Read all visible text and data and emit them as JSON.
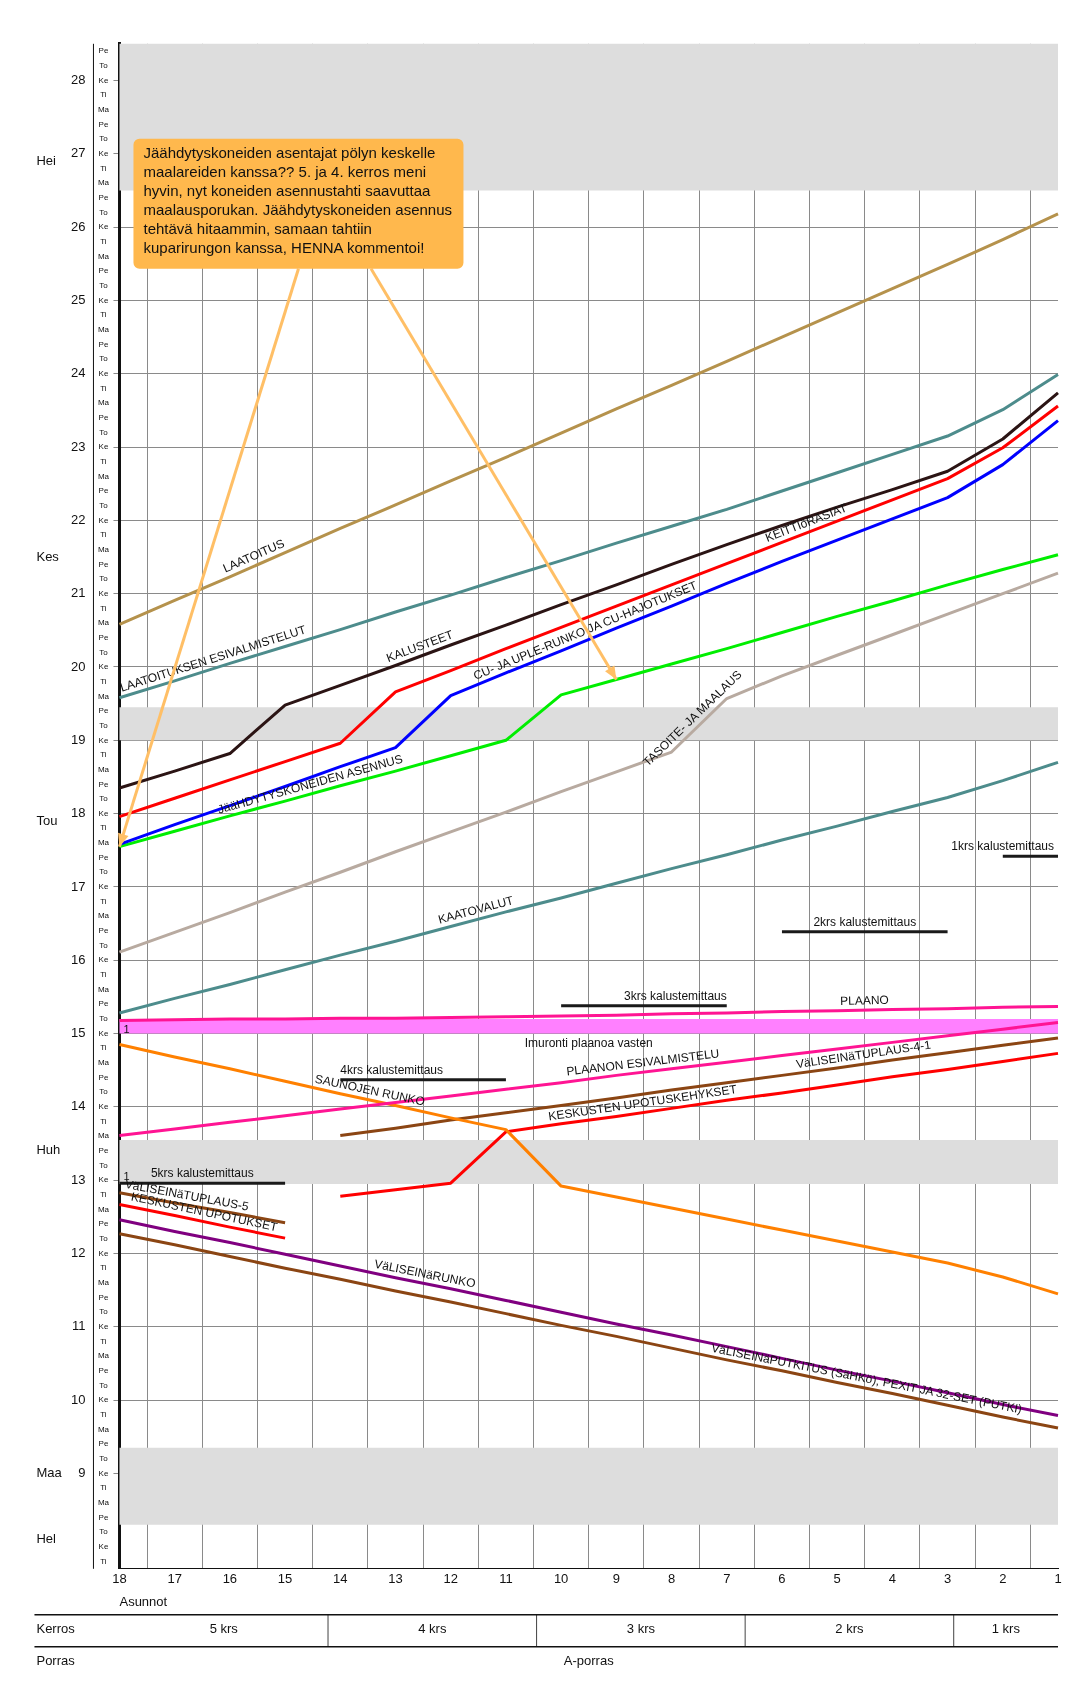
{
  "chart_data": {
    "type": "line",
    "xlabel": "Asunnot",
    "categories": [
      "18",
      "17",
      "16",
      "15",
      "14",
      "13",
      "12",
      "11",
      "10",
      "9",
      "8",
      "7",
      "6",
      "5",
      "4",
      "3",
      "2",
      "1"
    ],
    "ylim": [
      7.7,
      28.5
    ],
    "yticks": [
      9,
      10,
      11,
      12,
      13,
      14,
      15,
      16,
      17,
      18,
      19,
      20,
      21,
      22,
      23,
      24,
      25,
      26,
      27,
      28
    ],
    "grid": true,
    "legend": false,
    "bands": [
      {
        "axis": "y",
        "from": 8.3,
        "to": 9.35,
        "color": "#dddddd"
      },
      {
        "axis": "y",
        "from": 12.95,
        "to": 13.55,
        "color": "#dddddd"
      },
      {
        "axis": "y",
        "from": 19.0,
        "to": 19.45,
        "color": "#dddddd"
      },
      {
        "axis": "y",
        "from": 26.5,
        "to": 28.5,
        "color": "#dddddd"
      },
      {
        "axis": "y",
        "from": 15.0,
        "to": 15.2,
        "color": "#ff80ff",
        "label": "Imuronti plaanoa vasten"
      }
    ],
    "series": [
      {
        "name": "LAATOITUS",
        "color": "#b5924c",
        "values": [
          20.58,
          20.91,
          21.23,
          21.56,
          21.89,
          22.21,
          22.54,
          22.86,
          23.19,
          23.52,
          23.84,
          24.17,
          24.5,
          24.83,
          25.16,
          25.49,
          25.83,
          26.18
        ]
      },
      {
        "name": "LAATOITUKSEN ESIVALMISTELUT",
        "color": "#4d8c8c",
        "values": [
          19.58,
          19.81,
          20.05,
          20.28,
          20.51,
          20.75,
          20.98,
          21.22,
          21.45,
          21.69,
          21.92,
          22.15,
          22.4,
          22.65,
          22.9,
          23.15,
          23.51,
          23.99
        ]
      },
      {
        "name": "KALUSTEET",
        "color": "#2b1414",
        "values": [
          18.35,
          18.58,
          18.82,
          19.48,
          19.75,
          20.02,
          20.3,
          20.57,
          20.85,
          21.12,
          21.4,
          21.67,
          21.93,
          22.18,
          22.42,
          22.67,
          23.11,
          23.74
        ]
      },
      {
        "name": "KEITTIöRASIAT",
        "color": "#ff0000",
        "values": [
          17.96,
          18.21,
          18.46,
          18.71,
          18.96,
          19.66,
          19.95,
          20.25,
          20.54,
          20.83,
          21.12,
          21.41,
          21.7,
          21.99,
          22.28,
          22.57,
          22.99,
          23.56
        ]
      },
      {
        "name": "CU- JA UPLE-RUNKO JA CU-HAJOTUKSET",
        "color": "#0000ff",
        "values": [
          17.58,
          17.85,
          18.11,
          18.37,
          18.64,
          18.9,
          19.61,
          19.92,
          20.22,
          20.53,
          20.83,
          21.14,
          21.44,
          21.73,
          22.02,
          22.31,
          22.76,
          23.36
        ]
      },
      {
        "name": "JääHDYTYSKONEIDEN ASENNUS",
        "color": "#00ee00",
        "values": [
          17.55,
          17.76,
          17.97,
          18.17,
          18.38,
          18.58,
          18.79,
          19.0,
          19.62,
          19.83,
          20.04,
          20.25,
          20.47,
          20.69,
          20.9,
          21.12,
          21.33,
          21.53
        ]
      },
      {
        "name": "TASOITE- JA MAALAUS",
        "color": "#b8aaa0",
        "values": [
          16.11,
          16.38,
          16.65,
          16.93,
          17.2,
          17.48,
          17.75,
          18.02,
          18.3,
          18.57,
          18.84,
          19.57,
          19.88,
          20.16,
          20.44,
          20.72,
          21.0,
          21.28
        ]
      },
      {
        "name": "KAATOVALUT",
        "color": "#4d8c8c",
        "values": [
          15.28,
          15.48,
          15.67,
          15.87,
          16.07,
          16.26,
          16.46,
          16.66,
          16.85,
          17.05,
          17.25,
          17.44,
          17.64,
          17.83,
          18.03,
          18.22,
          18.45,
          18.7
        ]
      },
      {
        "name": "PLAANO",
        "color": "#ff1493",
        "values": [
          15.18,
          15.19,
          15.2,
          15.2,
          15.21,
          15.21,
          15.22,
          15.23,
          15.24,
          15.25,
          15.27,
          15.28,
          15.3,
          15.31,
          15.33,
          15.34,
          15.36,
          15.37
        ]
      },
      {
        "name": "PLAANON ESIVALMISTELU",
        "color": "#ff1493",
        "values": [
          13.61,
          13.7,
          13.79,
          13.88,
          13.97,
          14.06,
          14.15,
          14.24,
          14.33,
          14.43,
          14.52,
          14.61,
          14.7,
          14.79,
          14.88,
          14.97,
          15.06,
          15.15
        ]
      },
      {
        "name": "SAUNOJEN RUNKO",
        "color": "#ff8000",
        "values": [
          14.85,
          14.68,
          14.52,
          14.35,
          14.18,
          14.02,
          13.85,
          13.69,
          12.92,
          12.77,
          12.62,
          12.47,
          12.32,
          12.17,
          12.02,
          11.87,
          11.68,
          11.45
        ]
      },
      {
        "name": "VäLISEINäTUPLAUS-4-1",
        "color": "#8b4513",
        "values": [
          null,
          null,
          null,
          null,
          13.61,
          13.71,
          13.82,
          13.92,
          14.02,
          14.12,
          14.23,
          14.33,
          14.43,
          14.53,
          14.64,
          14.74,
          14.84,
          14.94
        ]
      },
      {
        "name": "KESKUSTEN UPOTUSKEHYKSET",
        "color": "#ff0000",
        "values": [
          null,
          null,
          null,
          null,
          12.78,
          12.87,
          12.96,
          13.66,
          13.77,
          13.87,
          13.98,
          14.09,
          14.19,
          14.3,
          14.41,
          14.51,
          14.62,
          14.73
        ]
      },
      {
        "name": "VäLISEINäTUPLAUS-5",
        "color": "#8b4513",
        "values": [
          12.83,
          12.69,
          12.56,
          12.42,
          null,
          null,
          null,
          null,
          null,
          null,
          null,
          null,
          null,
          null,
          null,
          null,
          null,
          null
        ]
      },
      {
        "name": "KESKUSTEN UPOTUKSET",
        "color": "#ff0000",
        "values": [
          12.67,
          12.52,
          12.36,
          12.21,
          null,
          null,
          null,
          null,
          null,
          null,
          null,
          null,
          null,
          null,
          null,
          null,
          null,
          null
        ]
      },
      {
        "name": "VäLISEINäRUNKO",
        "color": "#800080",
        "values": [
          12.46,
          12.3,
          12.15,
          11.99,
          11.83,
          11.67,
          11.52,
          11.36,
          11.2,
          11.04,
          10.89,
          10.73,
          10.57,
          10.41,
          10.26,
          10.1,
          9.94,
          9.79
        ]
      },
      {
        "name": "VäLISEINäPUTKITUS (SäHKö), PEXIT JA 32-SET (PUTKI)",
        "color": "#8b4513",
        "values": [
          12.27,
          12.12,
          11.96,
          11.8,
          11.65,
          11.49,
          11.34,
          11.18,
          11.02,
          10.87,
          10.71,
          10.55,
          10.4,
          10.24,
          10.09,
          9.93,
          9.77,
          9.62
        ]
      },
      {
        "name": "5krs kalustemittaus",
        "color": "#1a1a1a",
        "values": [
          12.96,
          12.96,
          12.96,
          12.96,
          null,
          null,
          null,
          null,
          null,
          null,
          null,
          null,
          null,
          null,
          null,
          null,
          null,
          null
        ]
      },
      {
        "name": "4krs kalustemittaus",
        "color": "#1a1a1a",
        "values": [
          null,
          null,
          null,
          null,
          14.37,
          14.37,
          14.37,
          14.37,
          null,
          null,
          null,
          null,
          null,
          null,
          null,
          null,
          null,
          null
        ]
      },
      {
        "name": "3krs kalustemittaus",
        "color": "#1a1a1a",
        "values": [
          null,
          null,
          null,
          null,
          null,
          null,
          null,
          null,
          15.38,
          15.38,
          15.38,
          15.38,
          null,
          null,
          null,
          null,
          null,
          null
        ]
      },
      {
        "name": "2krs kalustemittaus",
        "color": "#1a1a1a",
        "values": [
          null,
          null,
          null,
          null,
          null,
          null,
          null,
          null,
          null,
          null,
          null,
          null,
          16.39,
          16.39,
          16.39,
          16.39,
          null,
          null
        ]
      },
      {
        "name": "1krs kalustemittaus",
        "color": "#1a1a1a",
        "values": [
          null,
          null,
          null,
          null,
          null,
          null,
          null,
          null,
          null,
          null,
          null,
          null,
          null,
          null,
          null,
          null,
          17.42,
          17.42
        ]
      }
    ],
    "annotations": [
      "Jäähdytyskoneiden asentajat pölyn keskelle maalareiden kanssa?? 5. ja 4. kerros meni hyvin, nyt koneiden asennustahti saavuttaa maalausporukan. Jäähdytyskoneiden asennus tehtävä hitaammin, samaan tahtiin kuparirungon kanssa, HENNA kommentoi!",
      "1",
      "1",
      "Kerros",
      "5 krs",
      "4 krs",
      "3 krs",
      "2 krs",
      "1 krs",
      "Porras",
      "A-porras",
      "Hel",
      "Maa",
      "Huh",
      "Tou",
      "Kes",
      "Hei",
      "Ti",
      "Ke",
      "To",
      "Pe",
      "Ma",
      "Ti",
      "Ke",
      "To",
      "Pe",
      "Ma",
      "Ti",
      "Ke",
      "To",
      "Pe",
      "Ma",
      "Ti",
      "Ke",
      "To",
      "Pe",
      "Ma",
      "Ti",
      "Ke",
      "To",
      "Pe",
      "Ma",
      "Ti",
      "Ke",
      "To",
      "Pe",
      "Ma",
      "Ti",
      "Ke",
      "To",
      "Pe",
      "Ma",
      "Ti",
      "Ke",
      "To",
      "Pe",
      "Ma",
      "Ti",
      "Ke",
      "To",
      "Pe",
      "Ma",
      "Ti",
      "Ke",
      "To",
      "Pe",
      "Ma",
      "Ti",
      "Ke",
      "To",
      "Pe",
      "Ma",
      "Ti",
      "Ke",
      "To",
      "Pe",
      "Ma",
      "Ti",
      "Ke",
      "To",
      "Pe",
      "Ma",
      "Ti",
      "Ke",
      "To",
      "Pe",
      "Ma",
      "Ti",
      "Ke",
      "To",
      "Pe",
      "Ma",
      "Ti",
      "Ke",
      "To",
      "Pe",
      "Ma",
      "Ti",
      "Ke",
      "To",
      "Pe",
      "Ma",
      "Ti",
      "Ke",
      "To",
      "Pe",
      "Ma",
      "Ti",
      "Ke",
      "To",
      "Pe",
      "Ma",
      "Ti",
      "Ke",
      "To",
      "Pe",
      "Ma",
      "Ti",
      "Ke",
      "To",
      "Pe"
    ]
  }
}
